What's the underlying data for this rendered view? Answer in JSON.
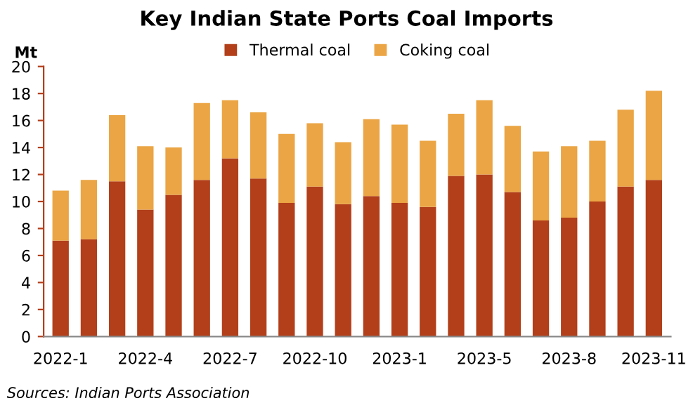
{
  "chart_data": {
    "type": "bar",
    "title": "Key Indian State Ports Coal Imports",
    "ylabel": "Mt",
    "categories": [
      "2022-1",
      null,
      null,
      "2022-4",
      null,
      null,
      "2022-7",
      null,
      null,
      "2022-10",
      null,
      null,
      "2023-1",
      null,
      null,
      "2023-5",
      null,
      null,
      "2023-8",
      null,
      null,
      "2023-11"
    ],
    "series": [
      {
        "name": "Thermal coal",
        "color": "#b23f1a",
        "values": [
          7.1,
          7.2,
          11.5,
          9.4,
          10.5,
          11.6,
          13.2,
          11.7,
          9.9,
          11.1,
          9.8,
          10.4,
          9.9,
          9.6,
          11.9,
          12.0,
          10.7,
          8.6,
          8.8,
          10.0,
          11.1,
          11.6
        ]
      },
      {
        "name": "Coking coal",
        "color": "#eba544",
        "values": [
          3.7,
          4.4,
          4.9,
          4.7,
          3.5,
          5.7,
          4.3,
          4.9,
          5.1,
          4.7,
          4.6,
          5.7,
          5.8,
          4.9,
          4.6,
          5.5,
          4.9,
          5.1,
          5.3,
          4.5,
          5.7,
          6.6
        ]
      }
    ],
    "stacked": true,
    "ylim": [
      0,
      20
    ],
    "yticks": [
      0,
      2,
      4,
      6,
      8,
      10,
      12,
      14,
      16,
      18,
      20
    ],
    "grid": false,
    "legend": "top",
    "annotations": [
      "Sources: Indian Ports Association"
    ]
  }
}
